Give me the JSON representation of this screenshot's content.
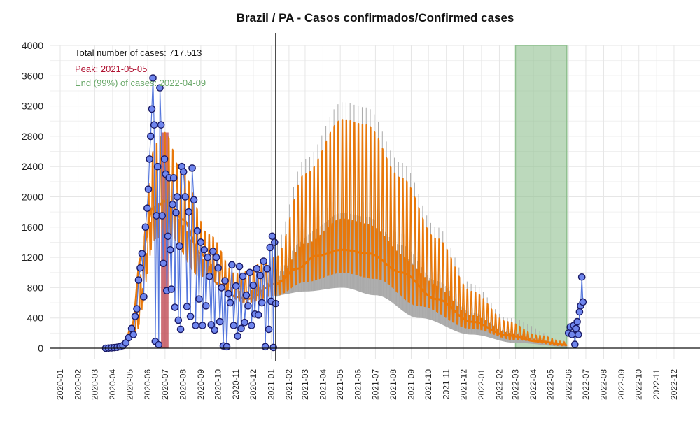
{
  "chart_data": {
    "type": "line",
    "title": "Brazil / PA - Casos confirmados/Confirmed cases",
    "xlabel": "",
    "ylabel": "",
    "ylim": [
      0,
      4000
    ],
    "xlim": [
      "2019-12-15",
      "2023-01-15"
    ],
    "y_ticks": [
      "0",
      "400",
      "800",
      "1200",
      "1600",
      "2000",
      "2400",
      "2800",
      "3200",
      "3600",
      "4000"
    ],
    "x_ticks": [
      "2020-01",
      "2020-02",
      "2020-03",
      "2020-04",
      "2020-05",
      "2020-06",
      "2020-07",
      "2020-08",
      "2020-09",
      "2020-10",
      "2020-11",
      "2020-12",
      "2021-01",
      "2021-02",
      "2021-03",
      "2021-04",
      "2021-05",
      "2021-06",
      "2021-07",
      "2021-08",
      "2021-09",
      "2021-10",
      "2021-11",
      "2021-12",
      "2022-01",
      "2022-02",
      "2022-03",
      "2022-04",
      "2022-05",
      "2022-06",
      "2022-07",
      "2022-08",
      "2022-09",
      "2022-10",
      "2022-11",
      "2022-12"
    ],
    "grid": true,
    "annotations": {
      "total": "Total number of cases: 717.513",
      "peak": "Peak: 2021-05-05",
      "end": "End (99%) of cases: 2022-04-09"
    },
    "today_line": "2021-01-09",
    "peak_band": {
      "start": "2020-06-24",
      "end": "2020-07-07"
    },
    "end_band": {
      "start": "2022-03-01",
      "end": "2022-05-29"
    },
    "colors": {
      "observed_fill": "#6f86ee",
      "observed_edge": "#1a1a66",
      "observed_line": "#5577dd",
      "fit": "#e8780a",
      "ci": "#aaaaaa",
      "peak_band": "#b8323c",
      "end_band": "#8fc08f",
      "peak_text": "#b01030",
      "end_text": "#6aa86a"
    },
    "observed": [
      [
        "2020-03-20",
        0
      ],
      [
        "2020-03-25",
        2
      ],
      [
        "2020-03-30",
        5
      ],
      [
        "2020-04-04",
        8
      ],
      [
        "2020-04-09",
        12
      ],
      [
        "2020-04-14",
        20
      ],
      [
        "2020-04-19",
        35
      ],
      [
        "2020-04-24",
        70
      ],
      [
        "2020-04-29",
        140
      ],
      [
        "2020-05-04",
        260
      ],
      [
        "2020-05-07",
        180
      ],
      [
        "2020-05-10",
        420
      ],
      [
        "2020-05-13",
        520
      ],
      [
        "2020-05-16",
        900
      ],
      [
        "2020-05-19",
        1060
      ],
      [
        "2020-05-22",
        1250
      ],
      [
        "2020-05-25",
        680
      ],
      [
        "2020-05-28",
        1600
      ],
      [
        "2020-05-31",
        1850
      ],
      [
        "2020-06-02",
        2100
      ],
      [
        "2020-06-04",
        2500
      ],
      [
        "2020-06-06",
        2800
      ],
      [
        "2020-06-08",
        3160
      ],
      [
        "2020-06-10",
        3570
      ],
      [
        "2020-06-12",
        2950
      ],
      [
        "2020-06-14",
        90
      ],
      [
        "2020-06-16",
        1750
      ],
      [
        "2020-06-18",
        2400
      ],
      [
        "2020-06-20",
        45
      ],
      [
        "2020-06-22",
        3440
      ],
      [
        "2020-06-24",
        2950
      ],
      [
        "2020-06-26",
        1750
      ],
      [
        "2020-06-28",
        1120
      ],
      [
        "2020-06-30",
        2500
      ],
      [
        "2020-07-02",
        2300
      ],
      [
        "2020-07-04",
        760
      ],
      [
        "2020-07-06",
        1480
      ],
      [
        "2020-07-08",
        2250
      ],
      [
        "2020-07-10",
        1300
      ],
      [
        "2020-07-12",
        780
      ],
      [
        "2020-07-14",
        1900
      ],
      [
        "2020-07-16",
        2250
      ],
      [
        "2020-07-18",
        540
      ],
      [
        "2020-07-20",
        1790
      ],
      [
        "2020-07-22",
        2000
      ],
      [
        "2020-07-24",
        370
      ],
      [
        "2020-07-26",
        1350
      ],
      [
        "2020-07-28",
        250
      ],
      [
        "2020-07-30",
        2400
      ],
      [
        "2020-08-02",
        2330
      ],
      [
        "2020-08-05",
        2000
      ],
      [
        "2020-08-08",
        550
      ],
      [
        "2020-08-11",
        1800
      ],
      [
        "2020-08-14",
        420
      ],
      [
        "2020-08-17",
        2380
      ],
      [
        "2020-08-20",
        1960
      ],
      [
        "2020-08-23",
        300
      ],
      [
        "2020-08-26",
        1550
      ],
      [
        "2020-08-29",
        650
      ],
      [
        "2020-09-01",
        1400
      ],
      [
        "2020-09-04",
        300
      ],
      [
        "2020-09-07",
        1300
      ],
      [
        "2020-09-10",
        560
      ],
      [
        "2020-09-13",
        1200
      ],
      [
        "2020-09-16",
        950
      ],
      [
        "2020-09-19",
        310
      ],
      [
        "2020-09-22",
        1280
      ],
      [
        "2020-09-25",
        240
      ],
      [
        "2020-09-28",
        1200
      ],
      [
        "2020-10-01",
        1060
      ],
      [
        "2020-10-04",
        350
      ],
      [
        "2020-10-07",
        800
      ],
      [
        "2020-10-10",
        30
      ],
      [
        "2020-10-13",
        890
      ],
      [
        "2020-10-16",
        20
      ],
      [
        "2020-10-19",
        720
      ],
      [
        "2020-10-22",
        600
      ],
      [
        "2020-10-25",
        1100
      ],
      [
        "2020-10-28",
        300
      ],
      [
        "2020-11-01",
        820
      ],
      [
        "2020-11-04",
        160
      ],
      [
        "2020-11-07",
        1080
      ],
      [
        "2020-11-10",
        260
      ],
      [
        "2020-11-13",
        950
      ],
      [
        "2020-11-16",
        340
      ],
      [
        "2020-11-19",
        700
      ],
      [
        "2020-11-22",
        560
      ],
      [
        "2020-11-25",
        1000
      ],
      [
        "2020-11-28",
        300
      ],
      [
        "2020-12-01",
        830
      ],
      [
        "2020-12-04",
        450
      ],
      [
        "2020-12-07",
        1050
      ],
      [
        "2020-12-10",
        440
      ],
      [
        "2020-12-13",
        960
      ],
      [
        "2020-12-16",
        600
      ],
      [
        "2020-12-19",
        1150
      ],
      [
        "2020-12-22",
        20
      ],
      [
        "2020-12-25",
        1050
      ],
      [
        "2020-12-28",
        250
      ],
      [
        "2020-12-30",
        1330
      ],
      [
        "2021-01-01",
        620
      ],
      [
        "2021-01-03",
        1480
      ],
      [
        "2021-01-05",
        10
      ],
      [
        "2021-01-07",
        1400
      ],
      [
        "2021-01-09",
        590
      ],
      [
        "2022-06-01",
        200
      ],
      [
        "2022-06-04",
        280
      ],
      [
        "2022-06-07",
        180
      ],
      [
        "2022-06-10",
        300
      ],
      [
        "2022-06-12",
        50
      ],
      [
        "2022-06-14",
        260
      ],
      [
        "2022-06-16",
        350
      ],
      [
        "2022-06-18",
        180
      ],
      [
        "2022-06-20",
        480
      ],
      [
        "2022-06-22",
        560
      ],
      [
        "2022-06-24",
        940
      ],
      [
        "2022-06-26",
        610
      ]
    ],
    "fit_curve": {
      "description": "Fitted daily-case curve: first wave peaks ~2000 around 2020-07-05, trough ~650 around 2020-11-20, second wave peaks ~1300 (mean) on 2021-05-05 with weekly oscillation up to ~3000, declines to ~50 by 2022-05-29",
      "mean_points": [
        [
          "2020-03-25",
          0
        ],
        [
          "2020-04-20",
          20
        ],
        [
          "2020-05-05",
          300
        ],
        [
          "2020-05-20",
          1200
        ],
        [
          "2020-06-10",
          1850
        ],
        [
          "2020-07-05",
          1950
        ],
        [
          "2020-08-01",
          1700
        ],
        [
          "2020-09-01",
          1250
        ],
        [
          "2020-10-01",
          850
        ],
        [
          "2020-11-01",
          680
        ],
        [
          "2020-11-20",
          650
        ],
        [
          "2021-01-09",
          850
        ],
        [
          "2021-02-15",
          1050
        ],
        [
          "2021-03-20",
          1220
        ],
        [
          "2021-05-05",
          1300
        ],
        [
          "2021-06-20",
          1250
        ],
        [
          "2021-08-15",
          1000
        ],
        [
          "2021-10-15",
          650
        ],
        [
          "2021-12-15",
          350
        ],
        [
          "2022-02-15",
          170
        ],
        [
          "2022-04-09",
          90
        ],
        [
          "2022-05-29",
          45
        ]
      ],
      "upper_points": [
        [
          "2020-05-10",
          600
        ],
        [
          "2020-06-15",
          2700
        ],
        [
          "2020-06-30",
          2850
        ],
        [
          "2020-08-01",
          2300
        ],
        [
          "2020-09-15",
          1500
        ],
        [
          "2020-11-01",
          980
        ],
        [
          "2021-01-09",
          1200
        ],
        [
          "2021-03-01",
          2300
        ],
        [
          "2021-05-05",
          3020
        ],
        [
          "2021-06-15",
          2950
        ],
        [
          "2021-08-15",
          2250
        ],
        [
          "2021-10-15",
          1450
        ],
        [
          "2021-12-15",
          750
        ],
        [
          "2022-02-15",
          350
        ],
        [
          "2022-04-09",
          170
        ],
        [
          "2022-05-29",
          80
        ]
      ],
      "lower_points": [
        [
          "2020-05-10",
          200
        ],
        [
          "2020-06-15",
          1450
        ],
        [
          "2020-07-05",
          1500
        ],
        [
          "2020-09-01",
          950
        ],
        [
          "2020-11-20",
          600
        ],
        [
          "2021-01-09",
          700
        ],
        [
          "2021-03-01",
          880
        ],
        [
          "2021-05-05",
          1000
        ],
        [
          "2021-07-01",
          920
        ],
        [
          "2021-09-15",
          560
        ],
        [
          "2021-12-15",
          260
        ],
        [
          "2022-03-01",
          110
        ],
        [
          "2022-05-29",
          30
        ]
      ],
      "ci_upper_points": [
        [
          "2021-01-09",
          1400
        ],
        [
          "2021-03-01",
          2500
        ],
        [
          "2021-05-05",
          3250
        ],
        [
          "2021-06-15",
          3180
        ],
        [
          "2021-08-15",
          2450
        ],
        [
          "2021-10-15",
          1600
        ],
        [
          "2021-12-15",
          850
        ],
        [
          "2022-02-15",
          400
        ],
        [
          "2022-05-29",
          100
        ]
      ],
      "ci_lower_points": [
        [
          "2021-01-09",
          700
        ],
        [
          "2021-03-01",
          750
        ],
        [
          "2021-05-05",
          800
        ],
        [
          "2021-07-01",
          700
        ],
        [
          "2021-09-15",
          400
        ],
        [
          "2021-12-15",
          180
        ],
        [
          "2022-03-01",
          70
        ],
        [
          "2022-05-29",
          20
        ]
      ]
    }
  }
}
